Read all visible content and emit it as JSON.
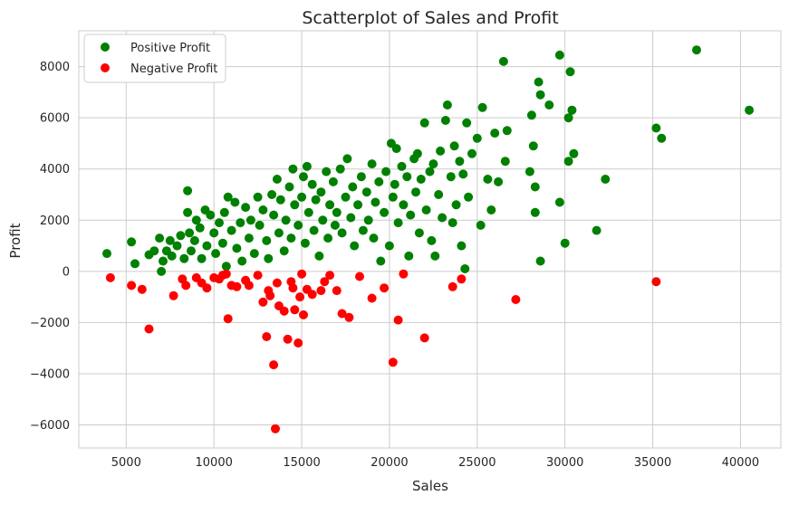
{
  "chart_data": {
    "type": "scatter",
    "title": "Scatterplot of Sales and Profit",
    "xlabel": "Sales",
    "ylabel": "Profit",
    "xlim": [
      2300,
      42300
    ],
    "ylim": [
      -6900,
      9400
    ],
    "xticks": [
      5000,
      10000,
      15000,
      20000,
      25000,
      30000,
      35000,
      40000
    ],
    "yticks": [
      -6000,
      -4000,
      -2000,
      0,
      2000,
      4000,
      6000,
      8000
    ],
    "grid": true,
    "legend_position": "top-left",
    "series": [
      {
        "name": "Positive Profit",
        "color": "#008000",
        "points": [
          [
            3900,
            700
          ],
          [
            5300,
            1150
          ],
          [
            5500,
            300
          ],
          [
            6300,
            650
          ],
          [
            6600,
            800
          ],
          [
            6900,
            1300
          ],
          [
            7000,
            0
          ],
          [
            7100,
            400
          ],
          [
            7300,
            800
          ],
          [
            7500,
            1200
          ],
          [
            7600,
            600
          ],
          [
            7900,
            1000
          ],
          [
            8100,
            1400
          ],
          [
            8300,
            500
          ],
          [
            8500,
            3150
          ],
          [
            8500,
            2300
          ],
          [
            8600,
            1500
          ],
          [
            8700,
            800
          ],
          [
            8900,
            1200
          ],
          [
            9000,
            2000
          ],
          [
            9200,
            1700
          ],
          [
            9300,
            500
          ],
          [
            9500,
            2400
          ],
          [
            9600,
            1000
          ],
          [
            9800,
            2200
          ],
          [
            10000,
            1500
          ],
          [
            10100,
            700
          ],
          [
            10300,
            1900
          ],
          [
            10500,
            1100
          ],
          [
            10600,
            2300
          ],
          [
            10700,
            200
          ],
          [
            10800,
            2900
          ],
          [
            11000,
            1600
          ],
          [
            11200,
            2700
          ],
          [
            11300,
            900
          ],
          [
            11500,
            1900
          ],
          [
            11600,
            400
          ],
          [
            11800,
            2500
          ],
          [
            12000,
            1300
          ],
          [
            12100,
            2000
          ],
          [
            12300,
            700
          ],
          [
            12500,
            2900
          ],
          [
            12600,
            1800
          ],
          [
            12800,
            2400
          ],
          [
            13000,
            1200
          ],
          [
            13100,
            500
          ],
          [
            13300,
            3000
          ],
          [
            13400,
            2200
          ],
          [
            13600,
            3600
          ],
          [
            13700,
            1500
          ],
          [
            13800,
            2800
          ],
          [
            14000,
            800
          ],
          [
            14100,
            2000
          ],
          [
            14300,
            3300
          ],
          [
            14400,
            1300
          ],
          [
            14500,
            4000
          ],
          [
            14600,
            2600
          ],
          [
            14800,
            1800
          ],
          [
            15000,
            2900
          ],
          [
            15100,
            3700
          ],
          [
            15200,
            1100
          ],
          [
            15300,
            4100
          ],
          [
            15400,
            2300
          ],
          [
            15600,
            3400
          ],
          [
            15700,
            1600
          ],
          [
            15800,
            2800
          ],
          [
            16000,
            600
          ],
          [
            16100,
            3100
          ],
          [
            16200,
            2000
          ],
          [
            16400,
            3900
          ],
          [
            16500,
            1300
          ],
          [
            16600,
            2600
          ],
          [
            16800,
            3500
          ],
          [
            16900,
            1800
          ],
          [
            17000,
            2300
          ],
          [
            17200,
            4000
          ],
          [
            17300,
            1500
          ],
          [
            17500,
            2900
          ],
          [
            17600,
            4400
          ],
          [
            17800,
            2100
          ],
          [
            17900,
            3300
          ],
          [
            18000,
            1000
          ],
          [
            18200,
            2600
          ],
          [
            18400,
            3700
          ],
          [
            18500,
            1600
          ],
          [
            18700,
            3100
          ],
          [
            18800,
            2000
          ],
          [
            19000,
            4200
          ],
          [
            19100,
            1300
          ],
          [
            19200,
            2700
          ],
          [
            19400,
            3500
          ],
          [
            19500,
            400
          ],
          [
            19700,
            2300
          ],
          [
            19800,
            3900
          ],
          [
            20000,
            1000
          ],
          [
            20100,
            5000
          ],
          [
            20200,
            2900
          ],
          [
            20300,
            3400
          ],
          [
            20400,
            4800
          ],
          [
            20500,
            1900
          ],
          [
            20700,
            4100
          ],
          [
            20800,
            2600
          ],
          [
            21000,
            3700
          ],
          [
            21100,
            600
          ],
          [
            21200,
            2200
          ],
          [
            21400,
            4400
          ],
          [
            21500,
            3100
          ],
          [
            21600,
            4600
          ],
          [
            21700,
            1500
          ],
          [
            21800,
            3600
          ],
          [
            22000,
            5800
          ],
          [
            22100,
            2400
          ],
          [
            22300,
            3900
          ],
          [
            22400,
            1200
          ],
          [
            22500,
            4200
          ],
          [
            22600,
            600
          ],
          [
            22800,
            3000
          ],
          [
            22900,
            4700
          ],
          [
            23000,
            2100
          ],
          [
            23200,
            5900
          ],
          [
            23300,
            6500
          ],
          [
            23500,
            3700
          ],
          [
            23600,
            1900
          ],
          [
            23700,
            4900
          ],
          [
            23800,
            2600
          ],
          [
            24000,
            4300
          ],
          [
            24100,
            1000
          ],
          [
            24200,
            3800
          ],
          [
            24300,
            100
          ],
          [
            24400,
            5800
          ],
          [
            24500,
            2900
          ],
          [
            24700,
            4600
          ],
          [
            25000,
            5200
          ],
          [
            25200,
            1800
          ],
          [
            25300,
            6400
          ],
          [
            25600,
            3600
          ],
          [
            25800,
            2400
          ],
          [
            26000,
            5400
          ],
          [
            26200,
            3500
          ],
          [
            26500,
            8200
          ],
          [
            26600,
            4300
          ],
          [
            26700,
            5500
          ],
          [
            28000,
            3900
          ],
          [
            28100,
            6100
          ],
          [
            28200,
            4900
          ],
          [
            28300,
            2300
          ],
          [
            28300,
            3300
          ],
          [
            28500,
            7400
          ],
          [
            28600,
            6900
          ],
          [
            28600,
            400
          ],
          [
            29100,
            6500
          ],
          [
            29700,
            8450
          ],
          [
            29700,
            2700
          ],
          [
            30000,
            1100
          ],
          [
            30200,
            6000
          ],
          [
            30200,
            4300
          ],
          [
            30300,
            7800
          ],
          [
            30400,
            6300
          ],
          [
            30500,
            4600
          ],
          [
            31800,
            1600
          ],
          [
            32300,
            3600
          ],
          [
            35200,
            5600
          ],
          [
            35500,
            5200
          ],
          [
            37500,
            8650
          ],
          [
            40500,
            6300
          ]
        ]
      },
      {
        "name": "Negative Profit",
        "color": "#ff0000",
        "points": [
          [
            4100,
            -250
          ],
          [
            5300,
            -550
          ],
          [
            5900,
            -700
          ],
          [
            6300,
            -2250
          ],
          [
            7700,
            -950
          ],
          [
            8200,
            -300
          ],
          [
            8400,
            -550
          ],
          [
            9000,
            -250
          ],
          [
            9300,
            -450
          ],
          [
            9600,
            -650
          ],
          [
            10000,
            -250
          ],
          [
            10300,
            -300
          ],
          [
            10500,
            -150
          ],
          [
            10700,
            -100
          ],
          [
            10800,
            -1850
          ],
          [
            11000,
            -550
          ],
          [
            11300,
            -600
          ],
          [
            11800,
            -350
          ],
          [
            12000,
            -550
          ],
          [
            12500,
            -150
          ],
          [
            12800,
            -1200
          ],
          [
            13000,
            -2550
          ],
          [
            13100,
            -750
          ],
          [
            13200,
            -950
          ],
          [
            13400,
            -3650
          ],
          [
            13500,
            -6150
          ],
          [
            13600,
            -450
          ],
          [
            13700,
            -1350
          ],
          [
            14000,
            -1550
          ],
          [
            14200,
            -2650
          ],
          [
            14400,
            -400
          ],
          [
            14500,
            -650
          ],
          [
            14600,
            -1500
          ],
          [
            14800,
            -2800
          ],
          [
            14900,
            -1000
          ],
          [
            15000,
            -100
          ],
          [
            15100,
            -1700
          ],
          [
            15300,
            -700
          ],
          [
            15600,
            -900
          ],
          [
            16100,
            -750
          ],
          [
            16300,
            -400
          ],
          [
            16600,
            -150
          ],
          [
            17000,
            -750
          ],
          [
            17300,
            -1650
          ],
          [
            17700,
            -1800
          ],
          [
            18300,
            -200
          ],
          [
            19000,
            -1050
          ],
          [
            19700,
            -650
          ],
          [
            20200,
            -3550
          ],
          [
            20500,
            -1900
          ],
          [
            20800,
            -100
          ],
          [
            22000,
            -2600
          ],
          [
            23600,
            -600
          ],
          [
            24100,
            -300
          ],
          [
            27200,
            -1100
          ],
          [
            35200,
            -400
          ]
        ]
      }
    ]
  }
}
